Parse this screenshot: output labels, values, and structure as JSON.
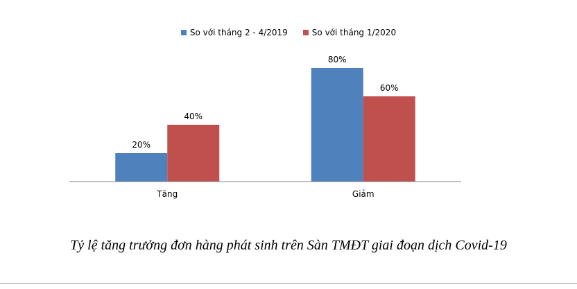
{
  "chart_data": {
    "type": "bar",
    "categories": [
      "Tăng",
      "Giảm"
    ],
    "series": [
      {
        "name": "So với tháng 2 - 4/2019",
        "values": [
          20,
          80
        ],
        "color": "#4f81bd"
      },
      {
        "name": "So với tháng 1/2020",
        "values": [
          40,
          60
        ],
        "color": "#c0504d"
      }
    ],
    "value_suffix": "%",
    "ylim": [
      0,
      80
    ],
    "grid": false,
    "legend_position": "top-center",
    "title": "Tỷ lệ tăng trưởng đơn hàng phát sinh trên Sàn TMĐT giai đoạn dịch Covid-19"
  }
}
